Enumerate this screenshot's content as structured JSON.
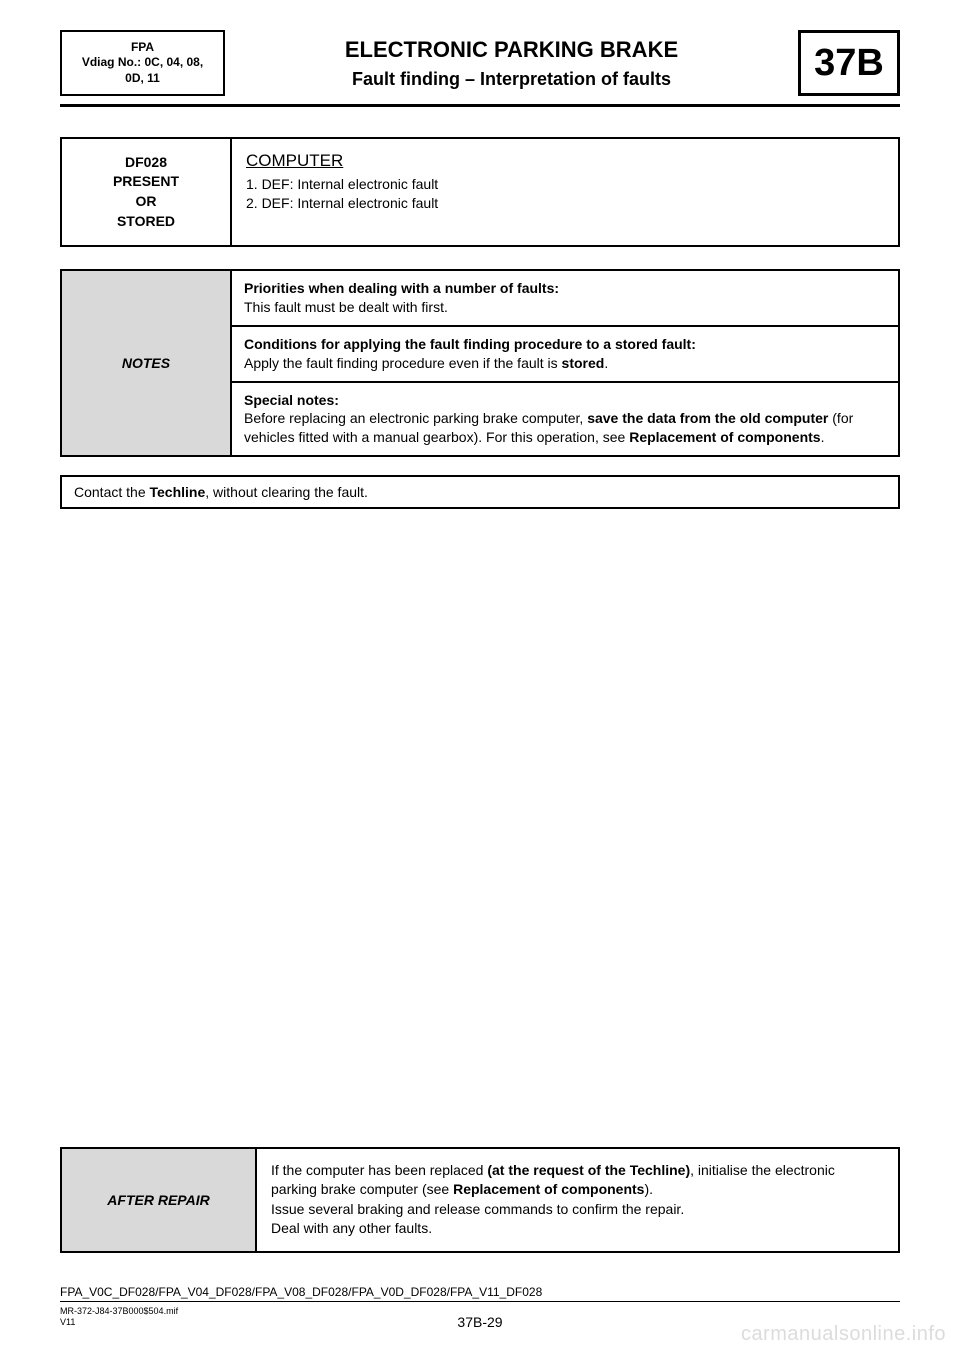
{
  "header": {
    "fpa_line1": "FPA",
    "fpa_line2": "Vdiag No.: 0C, 04, 08,",
    "fpa_line3": "0D, 11",
    "title": "ELECTRONIC PARKING BRAKE",
    "subtitle": "Fault finding – Interpretation of faults",
    "section_code": "37B"
  },
  "fault": {
    "code": "DF028",
    "state1": "PRESENT",
    "state2": "OR",
    "state3": "STORED",
    "title": "COMPUTER",
    "def1": "1. DEF: Internal electronic fault",
    "def2": "2. DEF: Internal electronic fault"
  },
  "notes": {
    "label": "NOTES",
    "row1_b": "Priorities when dealing with a number of faults:",
    "row1_t": "This fault must be dealt with first.",
    "row2_b": "Conditions for applying the fault finding procedure to a stored fault:",
    "row2_t1": "Apply the fault finding procedure even if the fault is ",
    "row2_t2": "stored",
    "row2_t3": ".",
    "row3_b": "Special notes:",
    "row3_t1": "Before replacing an electronic parking brake computer, ",
    "row3_t2": "save the data from the old computer",
    "row3_t3": " (for vehicles fitted with a manual gearbox). For this operation, see ",
    "row3_t4": "Replacement of components",
    "row3_t5": "."
  },
  "instruction": {
    "p1": "Contact the ",
    "p2": "Techline",
    "p3": ", without clearing the fault."
  },
  "after": {
    "label": "AFTER REPAIR",
    "l1a": "If the computer has been replaced ",
    "l1b": "(at the request of the Techline)",
    "l1c": ", initialise the electronic parking brake computer (see ",
    "l1d": "Replacement of components",
    "l1e": ").",
    "l2": "Issue several braking and release commands to confirm the repair.",
    "l3": "Deal with any other faults."
  },
  "footer": {
    "codes": "FPA_V0C_DF028/FPA_V04_DF028/FPA_V08_DF028/FPA_V0D_DF028/FPA_V11_DF028",
    "ref1": "MR-372-J84-37B000$504.mif",
    "ref2": "V11",
    "page": "37B-29"
  },
  "watermark": "carmanualsonline.info"
}
